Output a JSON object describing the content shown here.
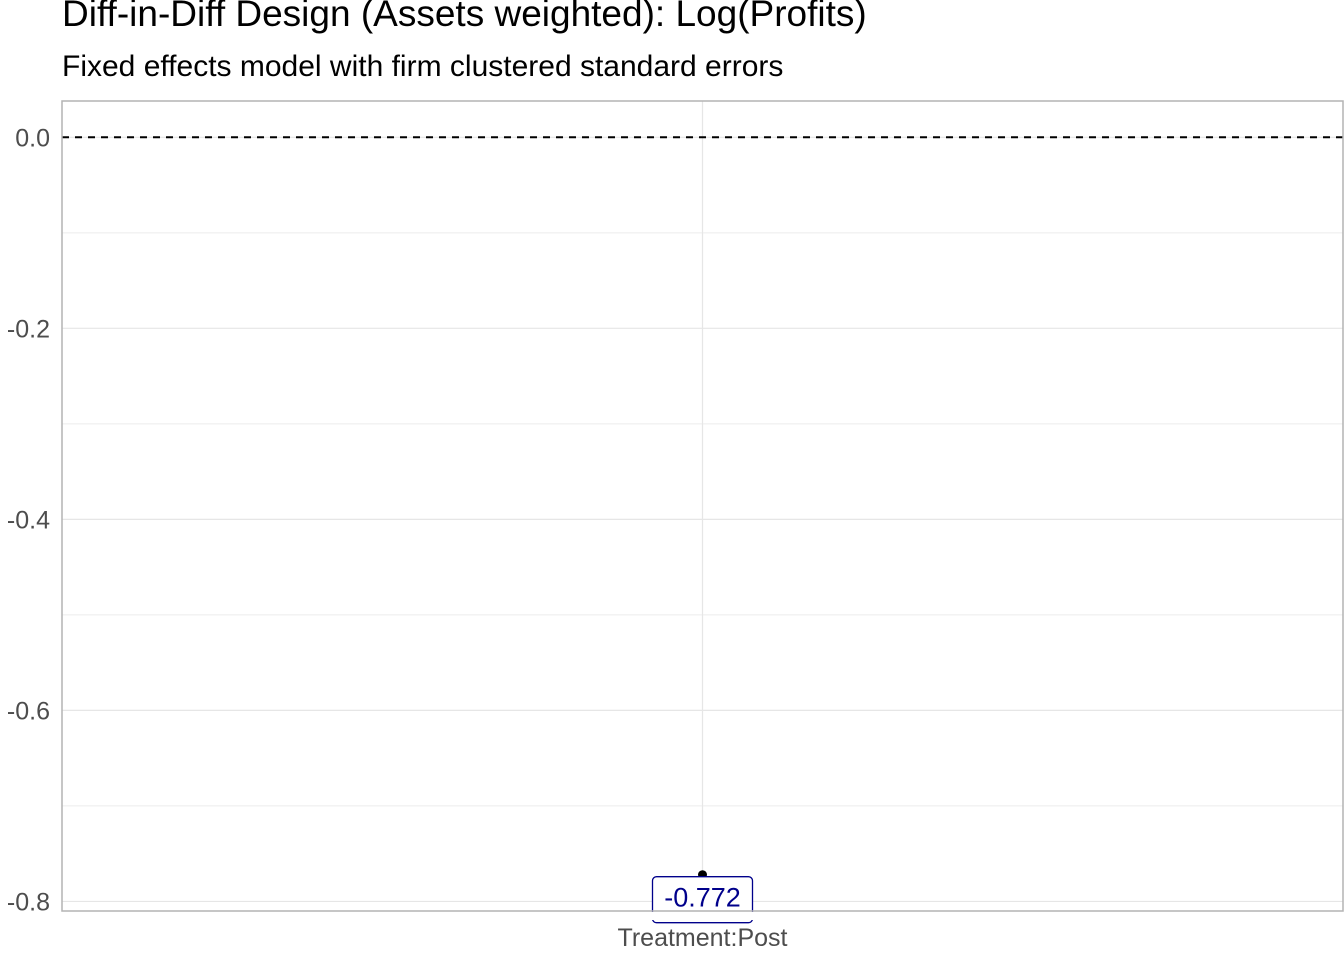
{
  "chart_data": {
    "type": "scatter",
    "title": "Diff-in-Diff Design (Assets weighted): Log(Profits)",
    "subtitle": "Fixed effects model with firm clustered standard errors",
    "xlabel": "",
    "ylabel": "",
    "categories": [
      "Treatment:Post"
    ],
    "series": [
      {
        "values": [
          -0.772
        ],
        "labels": [
          "-0.772"
        ]
      }
    ],
    "ylim": [
      -0.81,
      0.038
    ],
    "yticks": [
      0.0,
      -0.2,
      -0.4,
      -0.6,
      -0.8
    ],
    "ytick_labels": [
      "0.0",
      "-0.2",
      "-0.4",
      "-0.6",
      "-0.8"
    ],
    "reference_line": {
      "y": 0,
      "style": "dashed"
    },
    "grid": true,
    "legend": "none",
    "colors": {
      "point": "#000000",
      "label_text": "#00008B",
      "grid": "#e6e6e6",
      "panel_border": "#b3b3b3",
      "axis_text": "#4d4d4d"
    }
  }
}
